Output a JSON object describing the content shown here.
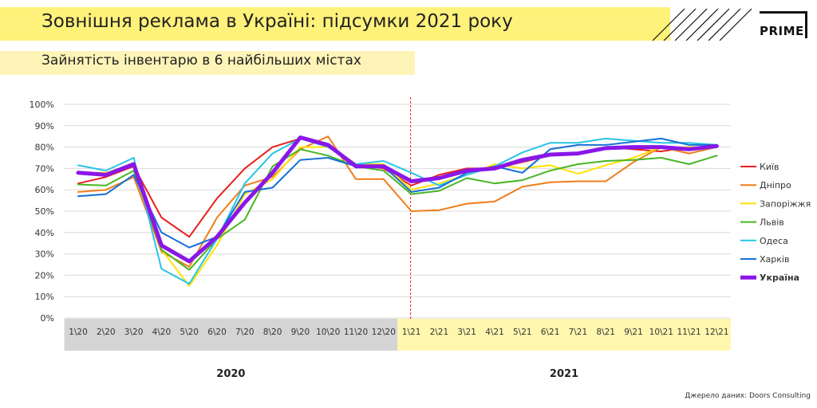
{
  "header": {
    "title": "Зовнішня реклама в Україні: підсумки 2021 року",
    "subtitle": "Зайнятість інвентарю в 6 найбільших містах",
    "logo": "PRIME",
    "source": "Джерело даних: Doors Consulting"
  },
  "chart_data": {
    "type": "line",
    "title": "",
    "xlabel": "",
    "ylabel": "",
    "ylim": [
      0,
      100
    ],
    "y_ticks": [
      "0%",
      "10%",
      "20%",
      "30%",
      "40%",
      "50%",
      "60%",
      "70%",
      "80%",
      "90%",
      "100%"
    ],
    "grid": true,
    "legend_position": "right",
    "categories": [
      "1\\20",
      "2\\20",
      "3\\20",
      "4\\20",
      "5\\20",
      "6\\20",
      "7\\20",
      "8\\20",
      "9\\20",
      "10\\20",
      "11\\20",
      "12\\20",
      "1\\21",
      "2\\21",
      "3\\21",
      "4\\21",
      "5\\21",
      "6\\21",
      "7\\21",
      "8\\21",
      "9\\21",
      "10\\21",
      "11\\21",
      "12\\21"
    ],
    "year_groups": [
      {
        "label": "2020",
        "start": 0,
        "end": 11,
        "color": "#d4d4d4"
      },
      {
        "label": "2021",
        "start": 12,
        "end": 23,
        "color": "#fff7ae"
      }
    ],
    "series": [
      {
        "name": "Київ",
        "color": "#e8201e",
        "width": 2,
        "values": [
          63,
          66,
          71,
          47,
          38,
          56,
          70,
          80,
          84,
          81,
          72,
          70,
          62,
          67,
          70,
          70,
          73,
          76,
          77,
          80,
          79,
          78,
          80,
          80
        ]
      },
      {
        "name": "Дніпро",
        "color": "#f07d1a",
        "width": 2,
        "values": [
          59,
          60,
          66,
          31,
          24,
          47,
          62,
          66,
          79,
          85,
          65,
          65,
          50,
          50.5,
          53.5,
          54.5,
          61.5,
          63.5,
          64,
          64,
          73,
          80,
          77,
          80
        ]
      },
      {
        "name": "Запоріжжя",
        "color": "#ffe100",
        "width": 2,
        "values": [
          68,
          68,
          72,
          32,
          15,
          34,
          58,
          65,
          80,
          80,
          72,
          72,
          60,
          63,
          67,
          72,
          70,
          71.5,
          67.5,
          71.5,
          75,
          80,
          80,
          80
        ]
      },
      {
        "name": "Львів",
        "color": "#47b623",
        "width": 2,
        "values": [
          62.5,
          62,
          69,
          32,
          22.5,
          37,
          46,
          71,
          79,
          76,
          71,
          69,
          58,
          59.5,
          65.5,
          63,
          64.5,
          69,
          72,
          73.5,
          74,
          75,
          72,
          76
        ]
      },
      {
        "name": "Одеса",
        "color": "#27c4e6",
        "width": 2,
        "values": [
          71.5,
          69,
          75,
          23,
          16,
          37,
          63,
          77,
          84,
          80,
          72,
          73.5,
          68,
          62,
          67,
          71,
          77.5,
          82,
          82,
          84,
          83,
          82,
          82,
          81
        ]
      },
      {
        "name": "Харків",
        "color": "#1570d6",
        "width": 2,
        "values": [
          57,
          58,
          67,
          40,
          33,
          38,
          59,
          61,
          74,
          75,
          71,
          71,
          59,
          61,
          68,
          71,
          68,
          79,
          81,
          81,
          82.5,
          84,
          81,
          81
        ]
      },
      {
        "name": "Україна",
        "color": "#8a16e8",
        "width": 5,
        "values": [
          68,
          67,
          72,
          34,
          26.5,
          38,
          54,
          68,
          84.5,
          81,
          71,
          71,
          64,
          65.5,
          69,
          70,
          74,
          76.5,
          77,
          79.5,
          80,
          80,
          79,
          80.5
        ]
      }
    ]
  }
}
